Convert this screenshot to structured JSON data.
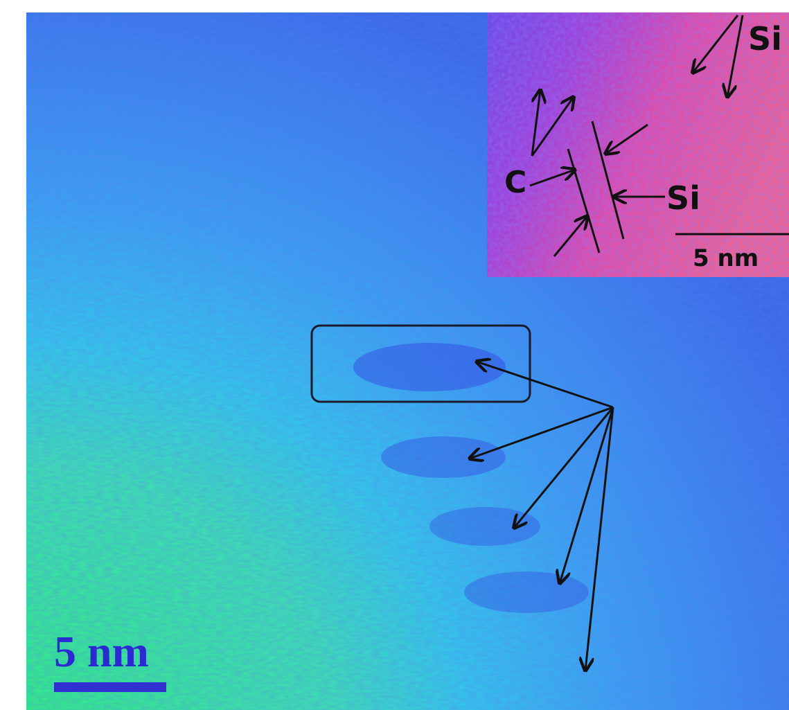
{
  "main": {
    "scale_label": "5 nm"
  },
  "inset": {
    "labels": [
      "Si",
      "C",
      "Si"
    ],
    "scale_label": "5 nm"
  }
}
